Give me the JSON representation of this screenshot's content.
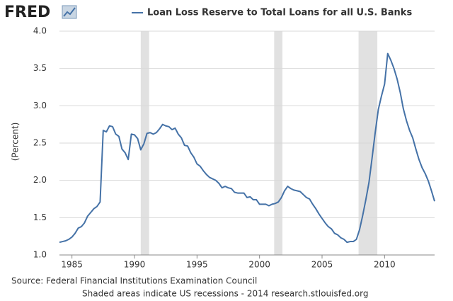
{
  "chart_data": {
    "type": "line",
    "logo": "FRED",
    "y_label": "(Percent)",
    "source": "Source: Federal Financial Institutions Examination Council",
    "note": "Shaded areas indicate US recessions - 2014 research.stlouisfed.org",
    "xlim": [
      1984,
      2014
    ],
    "ylim": [
      1,
      4
    ],
    "xticks": [
      1985,
      1990,
      1995,
      2000,
      2005,
      2010
    ],
    "yticks": [
      {
        "value": 1,
        "label": "1.0"
      },
      1.5,
      {
        "value": 2,
        "label": "2.0"
      },
      2.5,
      {
        "value": 3,
        "label": "3.0"
      },
      3.5,
      {
        "value": 4,
        "label": "4.0"
      }
    ],
    "grid": true,
    "recession_color": "#e1e1e1",
    "recessions": [
      [
        1990.5,
        1991.17
      ],
      [
        2001.17,
        2001.83
      ],
      [
        2007.92,
        2009.42
      ]
    ],
    "x": [
      1984,
      1984.25,
      1984.5,
      1984.75,
      1985,
      1985.25,
      1985.5,
      1985.75,
      1986,
      1986.25,
      1986.5,
      1986.75,
      1987,
      1987.25,
      1987.5,
      1987.75,
      1988,
      1988.25,
      1988.5,
      1988.75,
      1989,
      1989.25,
      1989.5,
      1989.75,
      1990,
      1990.25,
      1990.5,
      1990.75,
      1991,
      1991.25,
      1991.5,
      1991.75,
      1992,
      1992.25,
      1992.5,
      1992.75,
      1993,
      1993.25,
      1993.5,
      1993.75,
      1994,
      1994.25,
      1994.5,
      1994.75,
      1995,
      1995.25,
      1995.5,
      1995.75,
      1996,
      1996.25,
      1996.5,
      1996.75,
      1997,
      1997.25,
      1997.5,
      1997.75,
      1998,
      1998.25,
      1998.5,
      1998.75,
      1999,
      1999.25,
      1999.5,
      1999.75,
      2000,
      2000.25,
      2000.5,
      2000.75,
      2001,
      2001.25,
      2001.5,
      2001.75,
      2002,
      2002.25,
      2002.5,
      2002.75,
      2003,
      2003.25,
      2003.5,
      2003.75,
      2004,
      2004.25,
      2004.5,
      2004.75,
      2005,
      2005.25,
      2005.5,
      2005.75,
      2006,
      2006.25,
      2006.5,
      2006.75,
      2007,
      2007.25,
      2007.5,
      2007.75,
      2008,
      2008.25,
      2008.5,
      2008.75,
      2009,
      2009.25,
      2009.5,
      2009.75,
      2010,
      2010.25,
      2010.5,
      2010.75,
      2011,
      2011.25,
      2011.5,
      2011.75,
      2012,
      2012.25,
      2012.5,
      2012.75,
      2013,
      2013.25,
      2013.5,
      2013.75,
      2014
    ],
    "series": [
      {
        "name": "Loan Loss Reserve to Total Loans for all U.S. Banks",
        "color": "#4572a7",
        "values": [
          1.17,
          1.18,
          1.19,
          1.21,
          1.24,
          1.29,
          1.36,
          1.38,
          1.43,
          1.52,
          1.57,
          1.62,
          1.65,
          1.71,
          2.67,
          2.65,
          2.73,
          2.72,
          2.62,
          2.59,
          2.42,
          2.37,
          2.28,
          2.62,
          2.61,
          2.56,
          2.41,
          2.49,
          2.63,
          2.64,
          2.62,
          2.64,
          2.69,
          2.75,
          2.73,
          2.72,
          2.68,
          2.7,
          2.62,
          2.57,
          2.47,
          2.46,
          2.37,
          2.31,
          2.22,
          2.19,
          2.13,
          2.08,
          2.04,
          2.02,
          2.0,
          1.96,
          1.9,
          1.92,
          1.9,
          1.89,
          1.84,
          1.83,
          1.83,
          1.83,
          1.77,
          1.78,
          1.74,
          1.74,
          1.68,
          1.68,
          1.68,
          1.66,
          1.68,
          1.69,
          1.71,
          1.77,
          1.86,
          1.92,
          1.89,
          1.87,
          1.86,
          1.85,
          1.81,
          1.77,
          1.75,
          1.68,
          1.62,
          1.55,
          1.49,
          1.43,
          1.38,
          1.35,
          1.29,
          1.27,
          1.23,
          1.21,
          1.17,
          1.18,
          1.18,
          1.21,
          1.34,
          1.53,
          1.74,
          1.97,
          2.3,
          2.64,
          2.95,
          3.13,
          3.29,
          3.7,
          3.61,
          3.5,
          3.36,
          3.18,
          2.96,
          2.8,
          2.67,
          2.57,
          2.42,
          2.28,
          2.17,
          2.09,
          1.99,
          1.86,
          1.72
        ]
      }
    ]
  }
}
